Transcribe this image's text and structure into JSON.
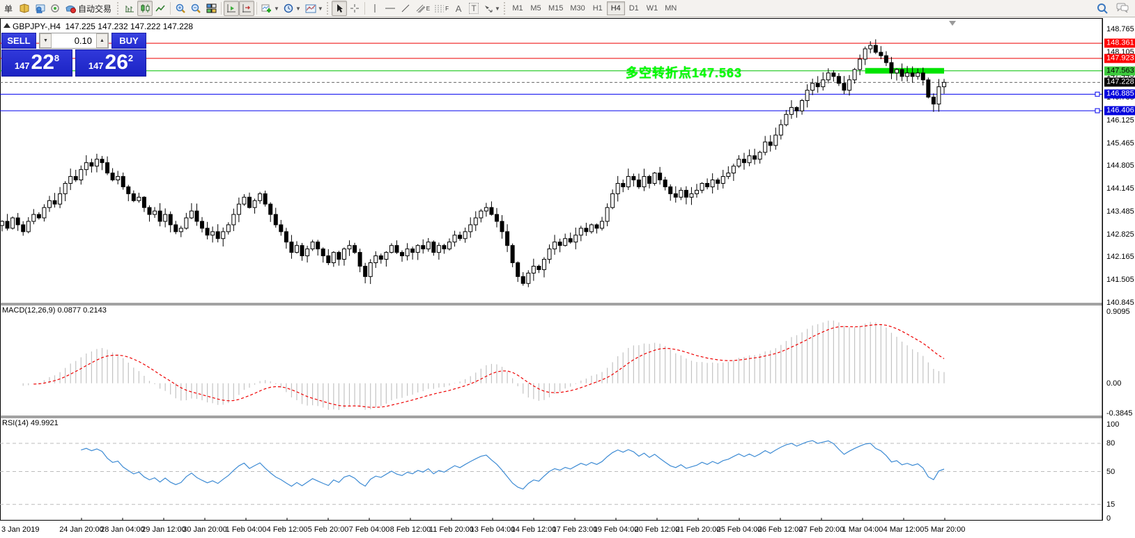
{
  "toolbar": {
    "new_order_label": "单",
    "autotrade_label": "自动交易",
    "tool_a_label": "A",
    "tool_t_label": "T",
    "channel_label": "E",
    "fibo_label": "F",
    "timeframes": [
      "M1",
      "M5",
      "M15",
      "M30",
      "H1",
      "H4",
      "D1",
      "W1",
      "MN"
    ],
    "selected_timeframe": "H4"
  },
  "chart": {
    "title": "GBPJPY-,H4",
    "ohlc_text": "147.225 147.232 147.222 147.228",
    "annotation": "多空转折点147.563"
  },
  "trade_panel": {
    "sell_label": "SELL",
    "buy_label": "BUY",
    "volume": "0.10",
    "bid": {
      "prefix": "147",
      "big": "22",
      "sup": "8"
    },
    "ask": {
      "prefix": "147",
      "big": "26",
      "sup": "2"
    }
  },
  "indicator_labels": {
    "macd": "MACD(12,26,9) 0.0877 0.2143",
    "rsi": "RSI(14) 49.9921"
  },
  "price_axis": {
    "ticks": [
      "148.765",
      "148.105",
      "147.445",
      "146.785",
      "146.125",
      "145.465",
      "144.805",
      "144.145",
      "143.485",
      "142.825",
      "142.165",
      "141.505",
      "140.845"
    ],
    "tags": [
      {
        "text": "148.361",
        "value": 148.361,
        "bg": "#fe0000",
        "fg": "#ffffff"
      },
      {
        "text": "147.923",
        "value": 147.923,
        "bg": "#fe0000",
        "fg": "#ffffff"
      },
      {
        "text": "147.563",
        "value": 147.563,
        "bg": "#3ecb3e",
        "fg": "#000000"
      },
      {
        "text": "147.228",
        "value": 147.228,
        "bg": "#000000",
        "fg": "#ffffff"
      },
      {
        "text": "146.885",
        "value": 146.885,
        "bg": "#0000dd",
        "fg": "#ffffff"
      },
      {
        "text": "146.406",
        "value": 146.406,
        "bg": "#0000dd",
        "fg": "#ffffff"
      }
    ]
  },
  "time_axis": [
    "3 Jan 2019",
    "24 Jan 20:00",
    "28 Jan 04:00",
    "29 Jan 12:00",
    "30 Jan 20:00",
    "1 Feb 04:00",
    "4 Feb 12:00",
    "5 Feb 20:00",
    "7 Feb 04:00",
    "8 Feb 12:00",
    "11 Feb 20:00",
    "13 Feb 04:00",
    "14 Feb 12:00",
    "17 Feb 23:00",
    "19 Feb 04:00",
    "20 Feb 12:00",
    "21 Feb 20:00",
    "25 Feb 04:00",
    "26 Feb 12:00",
    "27 Feb 20:00",
    "1 Mar 04:00",
    "4 Mar 12:00",
    "5 Mar 20:00"
  ],
  "chart_data": [
    {
      "type": "candlestick",
      "title": "GBPJPY-,H4",
      "open_high_low_close_current": [
        147.225,
        147.232,
        147.222,
        147.228
      ],
      "ylim": [
        140.82,
        149.07
      ],
      "x_range": [
        "23 Jan 2019",
        "5 Mar 2019 20:00"
      ],
      "closes": [
        143.2,
        143.0,
        143.3,
        143.1,
        142.9,
        143.2,
        143.4,
        143.3,
        143.6,
        143.8,
        143.7,
        144.0,
        144.3,
        144.5,
        144.4,
        144.7,
        144.9,
        144.8,
        145.0,
        144.9,
        144.6,
        144.4,
        144.5,
        144.2,
        144.0,
        143.8,
        143.9,
        143.6,
        143.4,
        143.5,
        143.2,
        143.4,
        143.1,
        142.9,
        143.0,
        143.3,
        143.5,
        143.2,
        143.0,
        142.8,
        142.9,
        142.7,
        142.9,
        143.1,
        143.4,
        143.7,
        143.9,
        143.6,
        143.8,
        144.0,
        143.7,
        143.4,
        143.1,
        142.9,
        142.6,
        142.3,
        142.5,
        142.2,
        142.4,
        142.6,
        142.4,
        142.2,
        142.0,
        142.3,
        142.1,
        142.4,
        142.5,
        142.3,
        141.9,
        141.6,
        142.0,
        142.2,
        142.1,
        142.3,
        142.5,
        142.3,
        142.2,
        142.4,
        142.3,
        142.5,
        142.4,
        142.6,
        142.3,
        142.5,
        142.4,
        142.6,
        142.8,
        142.7,
        142.9,
        143.1,
        143.3,
        143.5,
        143.6,
        143.4,
        143.2,
        142.9,
        142.5,
        142.0,
        141.6,
        141.4,
        141.7,
        141.9,
        141.8,
        142.1,
        142.4,
        142.6,
        142.5,
        142.7,
        142.6,
        142.8,
        143.0,
        142.9,
        143.1,
        143.0,
        143.2,
        143.6,
        144.0,
        144.3,
        144.2,
        144.5,
        144.4,
        144.2,
        144.5,
        144.3,
        144.6,
        144.4,
        144.2,
        144.0,
        143.9,
        144.1,
        143.9,
        144.0,
        144.1,
        144.3,
        144.2,
        144.4,
        144.3,
        144.5,
        144.6,
        144.8,
        145.0,
        144.9,
        145.1,
        145.0,
        145.2,
        145.5,
        145.4,
        145.7,
        146.0,
        146.3,
        146.5,
        146.4,
        146.7,
        147.0,
        147.2,
        147.1,
        147.3,
        147.5,
        147.4,
        147.2,
        147.0,
        147.3,
        147.6,
        147.9,
        148.2,
        148.3,
        148.1,
        148.0,
        147.8,
        147.5,
        147.6,
        147.4,
        147.5,
        147.4,
        147.5,
        147.3,
        146.8,
        146.6,
        147.1,
        147.228
      ],
      "hlines": [
        {
          "price": 148.361,
          "color": "#ee0000",
          "style": "solid"
        },
        {
          "price": 147.923,
          "color": "#ee0000",
          "style": "solid"
        },
        {
          "price": 147.563,
          "color": "#00c000",
          "style": "solid"
        },
        {
          "price": 147.228,
          "color": "#666666",
          "style": "dashed"
        },
        {
          "price": 146.885,
          "color": "#0000ee",
          "style": "solid",
          "end_marker": true
        },
        {
          "price": 146.406,
          "color": "#0000ee",
          "style": "solid",
          "end_marker": true
        }
      ],
      "green_zone": {
        "price": 147.563,
        "bar_start": 164,
        "bar_end": 179,
        "color": "#00e400"
      },
      "annotation": {
        "text": "多空转折点147.563",
        "color": "#00ff00",
        "near_price": 147.563
      }
    },
    {
      "type": "macd_histogram",
      "name": "MACD",
      "params": [
        12,
        26,
        9
      ],
      "current_values": [
        0.0877,
        0.2143
      ],
      "ylim": [
        -0.42,
        1.0
      ],
      "axis_ticks": [
        {
          "text": "0.9095",
          "value": 0.9095
        },
        {
          "text": "0.00",
          "value": 0.0
        },
        {
          "text": "-0.3845",
          "value": -0.3845
        }
      ],
      "histogram_color": "#c3c3c3",
      "signal_color": "#ee0000",
      "derived_from": "closes"
    },
    {
      "type": "rsi_line",
      "name": "RSI",
      "params": [
        14
      ],
      "current_value": 49.9921,
      "ylim": [
        0,
        100
      ],
      "levels": [
        80,
        50,
        15
      ],
      "axis_ticks": [
        {
          "text": "100",
          "value": 100
        },
        {
          "text": "80",
          "value": 80
        },
        {
          "text": "50",
          "value": 50
        },
        {
          "text": "15",
          "value": 15
        },
        {
          "text": "0",
          "value": 0
        }
      ],
      "line_color": "#3d8bd4",
      "derived_from": "closes"
    }
  ]
}
